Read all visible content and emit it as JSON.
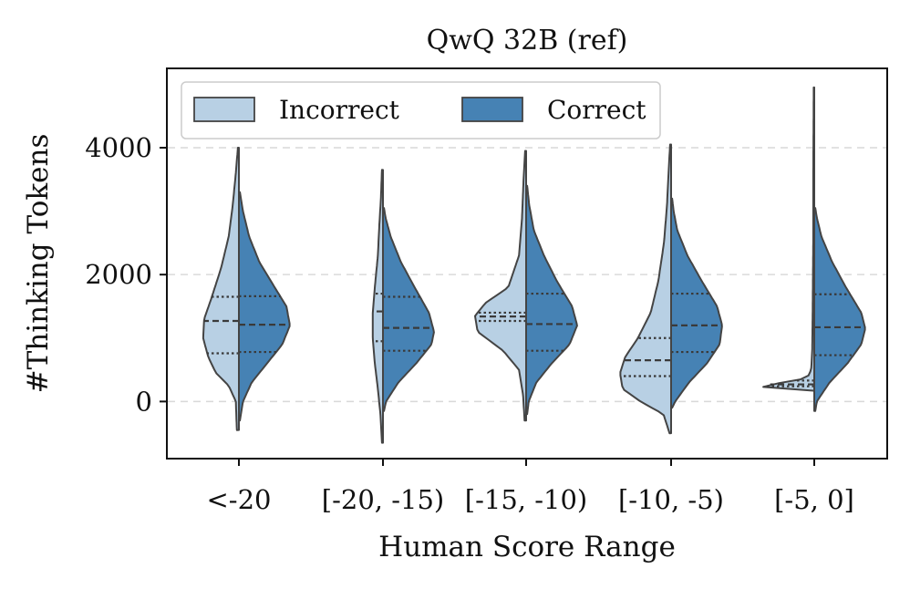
{
  "chart_data": {
    "type": "violin",
    "title": "QwQ 32B (ref)",
    "xlabel": "Human Score Range",
    "ylabel": "#Thinking Tokens",
    "ylim": [
      -900,
      5250
    ],
    "yticks": [
      0,
      2000,
      4000
    ],
    "ytick_labels": [
      "0",
      "2000",
      "4000"
    ],
    "grid": "y-dashed",
    "categories": [
      "<-20",
      "[-20, -15)",
      "[-15, -10)",
      "[-10, -5)",
      "[-5, 0]"
    ],
    "legend": {
      "position": "top-left",
      "entries": [
        {
          "name": "Incorrect",
          "color": "#b8d0e4"
        },
        {
          "name": "Correct",
          "color": "#4682b4"
        }
      ]
    },
    "series": [
      {
        "name": "Incorrect",
        "side": "left",
        "color": "#b8d0e4",
        "violins": [
          {
            "category": "<-20",
            "min": -450,
            "max": 4000,
            "profile": [
              [
                -450,
                0.04
              ],
              [
                0,
                0.06
              ],
              [
                250,
                0.2
              ],
              [
                450,
                0.45
              ],
              [
                700,
                0.6
              ],
              [
                1000,
                0.7
              ],
              [
                1300,
                0.68
              ],
              [
                1600,
                0.55
              ],
              [
                2100,
                0.35
              ],
              [
                2600,
                0.2
              ],
              [
                3100,
                0.12
              ],
              [
                3600,
                0.06
              ],
              [
                4000,
                0.02
              ]
            ],
            "quartiles": [
              760,
              1270,
              1650
            ]
          },
          {
            "category": "[-20, -15)",
            "min": -650,
            "max": 3650,
            "profile": [
              [
                -650,
                0.02
              ],
              [
                -200,
                0.05
              ],
              [
                200,
                0.1
              ],
              [
                600,
                0.16
              ],
              [
                1000,
                0.2
              ],
              [
                1400,
                0.2
              ],
              [
                1800,
                0.16
              ],
              [
                2300,
                0.1
              ],
              [
                2800,
                0.07
              ],
              [
                3200,
                0.04
              ],
              [
                3650,
                0.02
              ]
            ],
            "quartiles": [
              950,
              1420,
              1700
            ]
          },
          {
            "category": "[-15, -10)",
            "min": -300,
            "max": 3950,
            "profile": [
              [
                -300,
                0.03
              ],
              [
                100,
                0.06
              ],
              [
                500,
                0.14
              ],
              [
                800,
                0.45
              ],
              [
                1100,
                0.95
              ],
              [
                1350,
                1.0
              ],
              [
                1550,
                0.8
              ],
              [
                1800,
                0.35
              ],
              [
                2300,
                0.14
              ],
              [
                2900,
                0.08
              ],
              [
                3500,
                0.05
              ],
              [
                3950,
                0.02
              ]
            ],
            "quartiles": [
              1270,
              1340,
              1400
            ]
          },
          {
            "category": "[-10, -5)",
            "min": -500,
            "max": 4050,
            "profile": [
              [
                -500,
                0.03
              ],
              [
                -200,
                0.15
              ],
              [
                0,
                0.6
              ],
              [
                200,
                0.95
              ],
              [
                450,
                1.0
              ],
              [
                700,
                0.9
              ],
              [
                1000,
                0.65
              ],
              [
                1400,
                0.4
              ],
              [
                1900,
                0.25
              ],
              [
                2500,
                0.14
              ],
              [
                3100,
                0.08
              ],
              [
                3600,
                0.05
              ],
              [
                4050,
                0.02
              ]
            ],
            "quartiles": [
              400,
              650,
              1000
            ]
          },
          {
            "category": "[-5, 0]",
            "min": 170,
            "max": 4950,
            "profile": [
              [
                170,
                0.02
              ],
              [
                200,
                0.75
              ],
              [
                230,
                1.0
              ],
              [
                260,
                0.95
              ],
              [
                300,
                0.6
              ],
              [
                340,
                0.3
              ],
              [
                400,
                0.12
              ],
              [
                500,
                0.06
              ],
              [
                800,
                0.04
              ],
              [
                1500,
                0.03
              ],
              [
                2500,
                0.02
              ],
              [
                3500,
                0.02
              ],
              [
                4950,
                0.01
              ]
            ],
            "quartiles": [
              240,
              270,
              330
            ]
          }
        ]
      },
      {
        "name": "Correct",
        "side": "right",
        "color": "#4682b4",
        "violins": [
          {
            "category": "<-20",
            "min": -300,
            "max": 3300,
            "profile": [
              [
                -300,
                0.02
              ],
              [
                0,
                0.08
              ],
              [
                300,
                0.25
              ],
              [
                600,
                0.55
              ],
              [
                900,
                0.85
              ],
              [
                1200,
                1.0
              ],
              [
                1500,
                0.93
              ],
              [
                1800,
                0.7
              ],
              [
                2200,
                0.4
              ],
              [
                2600,
                0.2
              ],
              [
                3000,
                0.08
              ],
              [
                3300,
                0.02
              ]
            ],
            "quartiles": [
              780,
              1210,
              1660
            ]
          },
          {
            "category": "[-20, -15)",
            "min": -150,
            "max": 3050,
            "profile": [
              [
                -150,
                0.02
              ],
              [
                0,
                0.06
              ],
              [
                300,
                0.3
              ],
              [
                600,
                0.65
              ],
              [
                900,
                0.95
              ],
              [
                1100,
                1.0
              ],
              [
                1400,
                0.9
              ],
              [
                1800,
                0.62
              ],
              [
                2200,
                0.35
              ],
              [
                2600,
                0.15
              ],
              [
                2900,
                0.05
              ],
              [
                3050,
                0.02
              ]
            ],
            "quartiles": [
              800,
              1160,
              1650
            ]
          },
          {
            "category": "[-15, -10)",
            "min": -200,
            "max": 3400,
            "profile": [
              [
                -200,
                0.02
              ],
              [
                0,
                0.05
              ],
              [
                300,
                0.2
              ],
              [
                600,
                0.5
              ],
              [
                900,
                0.85
              ],
              [
                1200,
                1.0
              ],
              [
                1500,
                0.9
              ],
              [
                1900,
                0.6
              ],
              [
                2300,
                0.35
              ],
              [
                2700,
                0.15
              ],
              [
                3100,
                0.06
              ],
              [
                3400,
                0.02
              ]
            ],
            "quartiles": [
              800,
              1220,
              1700
            ]
          },
          {
            "category": "[-10, -5)",
            "min": -100,
            "max": 3200,
            "profile": [
              [
                -100,
                0.02
              ],
              [
                0,
                0.08
              ],
              [
                300,
                0.35
              ],
              [
                600,
                0.7
              ],
              [
                900,
                0.95
              ],
              [
                1200,
                1.0
              ],
              [
                1500,
                0.9
              ],
              [
                1900,
                0.6
              ],
              [
                2300,
                0.32
              ],
              [
                2700,
                0.12
              ],
              [
                3000,
                0.05
              ],
              [
                3200,
                0.02
              ]
            ],
            "quartiles": [
              780,
              1200,
              1700
            ]
          },
          {
            "category": "[-5, 0]",
            "min": -150,
            "max": 3050,
            "profile": [
              [
                -150,
                0.02
              ],
              [
                0,
                0.05
              ],
              [
                300,
                0.3
              ],
              [
                600,
                0.65
              ],
              [
                900,
                0.92
              ],
              [
                1150,
                1.0
              ],
              [
                1400,
                0.92
              ],
              [
                1800,
                0.62
              ],
              [
                2200,
                0.35
              ],
              [
                2600,
                0.14
              ],
              [
                2900,
                0.05
              ],
              [
                3050,
                0.02
              ]
            ],
            "quartiles": [
              730,
              1170,
              1690
            ]
          }
        ]
      }
    ]
  }
}
